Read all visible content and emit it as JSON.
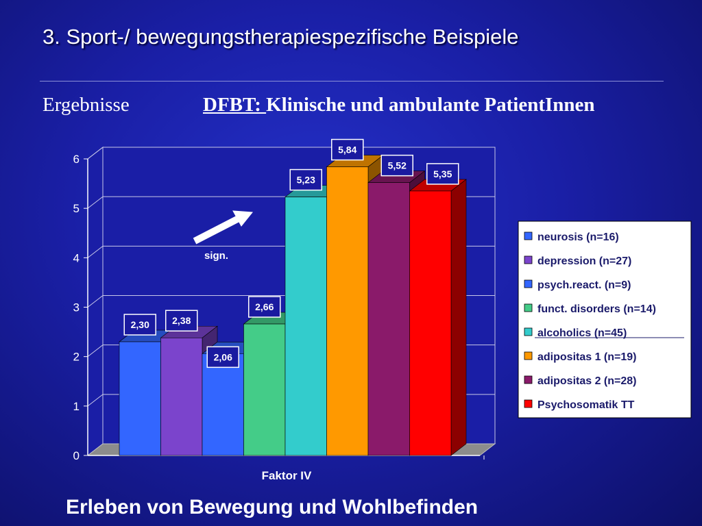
{
  "slide": {
    "title": "3. Sport-/ bewegungstherapiespezifische Beispiele",
    "section_label": "Ergebnisse",
    "subtitle_prefix": "DFBT: ",
    "subtitle_rest": "Klinische und ambulante PatientInnen",
    "caption": "Erleben von Bewegung und Wohlbefinden",
    "annotation": "sign."
  },
  "chart_data": {
    "type": "bar",
    "categories": [
      "Faktor IV"
    ],
    "xlabel": "Faktor IV",
    "ylabel": "",
    "ylim": [
      0,
      6
    ],
    "yticks": [
      "0",
      "1",
      "2",
      "3",
      "4",
      "5",
      "6"
    ],
    "grid": true,
    "legend_position": "right",
    "series": [
      {
        "name": "neurosis (n=16)",
        "values": [
          2.3
        ],
        "label": "2,30",
        "color": "#3366ff"
      },
      {
        "name": "depression (n=27)",
        "values": [
          2.38
        ],
        "label": "2,38",
        "color": "#7b44cc"
      },
      {
        "name": "psych.react. (n=9)",
        "values": [
          2.06
        ],
        "label": "2,06",
        "color": "#3366ff"
      },
      {
        "name": "funct. disorders (n=14)",
        "values": [
          2.66
        ],
        "label": "2,66",
        "color": "#44cc88"
      },
      {
        "name": "alcoholics (n=45)",
        "values": [
          5.23
        ],
        "label": "5,23",
        "color": "#33cccc"
      },
      {
        "name": "adipositas 1 (n=19)",
        "values": [
          5.84
        ],
        "label": "5,84",
        "color": "#ff9900"
      },
      {
        "name": "adipositas 2 (n=28)",
        "values": [
          5.52
        ],
        "label": "5,52",
        "color": "#8a1a6a"
      },
      {
        "name": "Psychosomatik TT",
        "values": [
          5.35
        ],
        "label": "5,35",
        "color": "#ff0000"
      }
    ]
  }
}
